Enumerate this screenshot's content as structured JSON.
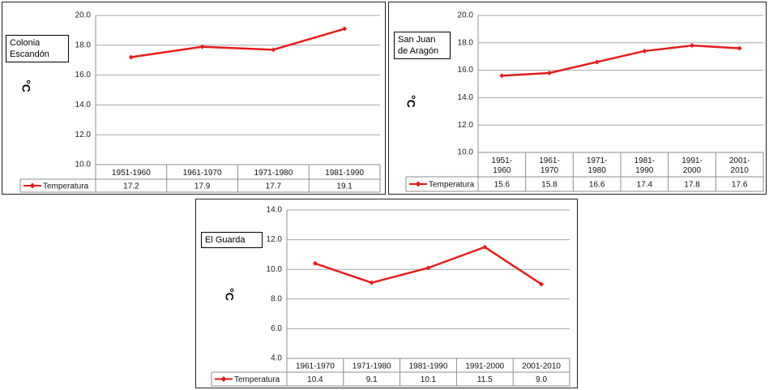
{
  "colors": {
    "series": "#e41c1c",
    "grid": "#a6a6a6",
    "table": "#8c8c8c"
  },
  "chart_data": [
    {
      "type": "line",
      "station": "Colonia\nEscandón",
      "unit": "°C",
      "ylim": [
        10.0,
        20.0
      ],
      "yticks": [
        "10.0",
        "12.0",
        "14.0",
        "16.0",
        "18.0",
        "20.0"
      ],
      "categories": [
        "1951-1960",
        "1961-1970",
        "1971-1980",
        "1981-1990"
      ],
      "series": [
        {
          "name": "Temperatura",
          "values": [
            17.2,
            17.9,
            17.7,
            19.1
          ],
          "labels": [
            "17.2",
            "17.9",
            "17.7",
            "19.1"
          ]
        }
      ],
      "grid": true,
      "legend": "data-table"
    },
    {
      "type": "line",
      "station": "San Juan\nde Aragón",
      "unit": "°C",
      "ylim": [
        10.0,
        20.0
      ],
      "yticks": [
        "10.0",
        "12.0",
        "14.0",
        "16.0",
        "18.0",
        "20.0"
      ],
      "categories": [
        "1951-\n1960",
        "1961-\n1970",
        "1971-\n1980",
        "1981-\n1990",
        "1991-\n2000",
        "2001-\n2010"
      ],
      "series": [
        {
          "name": "Temperatura",
          "values": [
            15.6,
            15.8,
            16.6,
            17.4,
            17.8,
            17.6
          ],
          "labels": [
            "15.6",
            "15.8",
            "16.6",
            "17.4",
            "17.8",
            "17.6"
          ]
        }
      ],
      "grid": true,
      "legend": "data-table"
    },
    {
      "type": "line",
      "station": "El Guarda",
      "unit": "°C",
      "ylim": [
        4.0,
        14.0
      ],
      "yticks": [
        "4.0",
        "6.0",
        "8.0",
        "10.0",
        "12.0",
        "14.0"
      ],
      "categories": [
        "1961-1970",
        "1971-1980",
        "1981-1990",
        "1991-2000",
        "2001-2010"
      ],
      "series": [
        {
          "name": "Temperatura",
          "values": [
            10.4,
            9.1,
            10.1,
            11.5,
            9.0
          ],
          "labels": [
            "10.4",
            "9.1",
            "10.1",
            "11.5",
            "9.0"
          ]
        }
      ],
      "grid": true,
      "legend": "data-table"
    }
  ]
}
